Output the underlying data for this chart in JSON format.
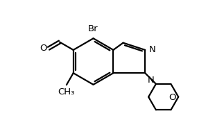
{
  "bond_color": "#000000",
  "background_color": "#ffffff",
  "bond_width": 1.6,
  "figsize": [
    3.23,
    1.93
  ],
  "dpi": 100,
  "xlim": [
    0,
    10
  ],
  "ylim": [
    0,
    6
  ],
  "Br_label": "Br",
  "N_label": "N",
  "O_label": "O",
  "CH3_label": "CH₃"
}
